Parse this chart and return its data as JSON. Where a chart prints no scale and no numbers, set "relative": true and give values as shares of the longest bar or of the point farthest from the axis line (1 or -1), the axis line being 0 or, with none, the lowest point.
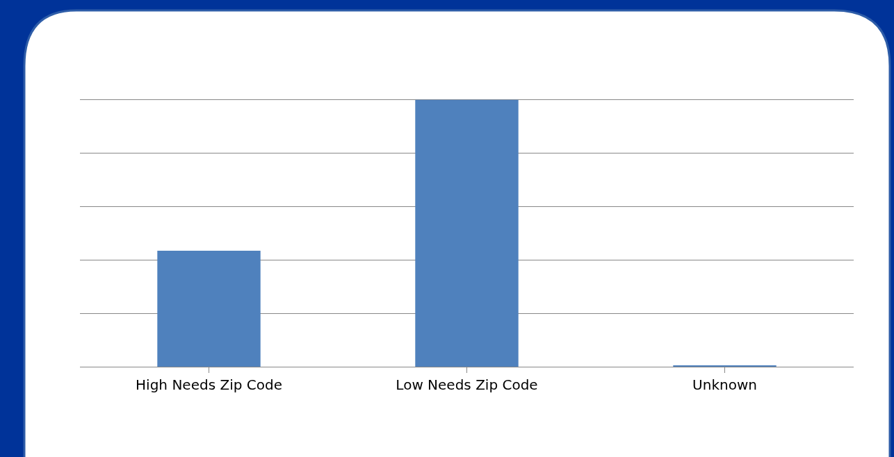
{
  "chart_data": {
    "type": "bar",
    "relative": true,
    "grid": "y",
    "categories": [
      "High Needs Zip Code",
      "Low Needs Zip Code",
      "Unknown"
    ],
    "values": [
      0.435,
      1,
      0.005
    ],
    "color": "#4f81bd"
  }
}
